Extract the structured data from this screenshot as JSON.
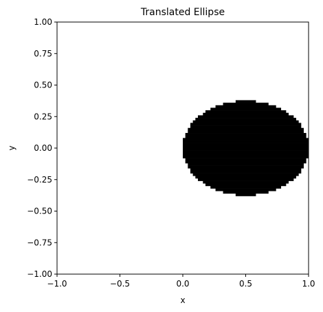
{
  "chart_data": {
    "type": "heatmap",
    "title": "Translated Ellipse",
    "xlabel": "x",
    "ylabel": "y",
    "xlim": [
      -1.0,
      1.0
    ],
    "ylim": [
      -1.0,
      1.0
    ],
    "grid": false,
    "legend": "none",
    "xticks": [
      -1.0,
      -0.5,
      0.0,
      0.5,
      1.0
    ],
    "yticks": [
      -1.0,
      -0.75,
      -0.5,
      -0.25,
      0.0,
      0.25,
      0.5,
      0.75,
      1.0
    ],
    "xtick_labels": [
      "−1.0",
      "−0.5",
      "0.0",
      "0.5",
      "1.0"
    ],
    "ytick_labels": [
      "−1.00",
      "−0.75",
      "−0.50",
      "−0.25",
      "0.00",
      "0.25",
      "0.50",
      "0.75",
      "1.00"
    ],
    "ellipse": {
      "center_x": 0.5,
      "center_y": 0.0,
      "semi_axis_x": 0.5,
      "semi_axis_y": 0.375,
      "grid_resolution": 100,
      "fill_color": "#000000",
      "background_color": "#ffffff"
    }
  }
}
